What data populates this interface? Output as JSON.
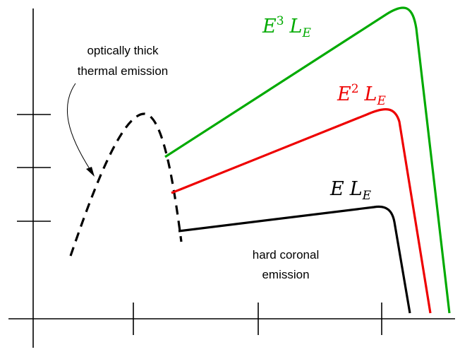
{
  "annotations": {
    "thermal_line1": "optically thick",
    "thermal_line2": "thermal emission",
    "coronal_line1": "hard coronal",
    "coronal_line2": "emission"
  },
  "curve_labels": {
    "e3": {
      "base": "E",
      "sup": "3",
      "l": "L",
      "sub": "E"
    },
    "e2": {
      "base": "E",
      "sup": "2",
      "l": "L",
      "sub": "E"
    },
    "e1": {
      "base": "E",
      "l": "L",
      "sub": "E"
    }
  },
  "colors": {
    "e3": "#00aa00",
    "e2": "#ee0000",
    "e1": "#000000",
    "thermal": "#000000",
    "axes": "#000000"
  }
}
